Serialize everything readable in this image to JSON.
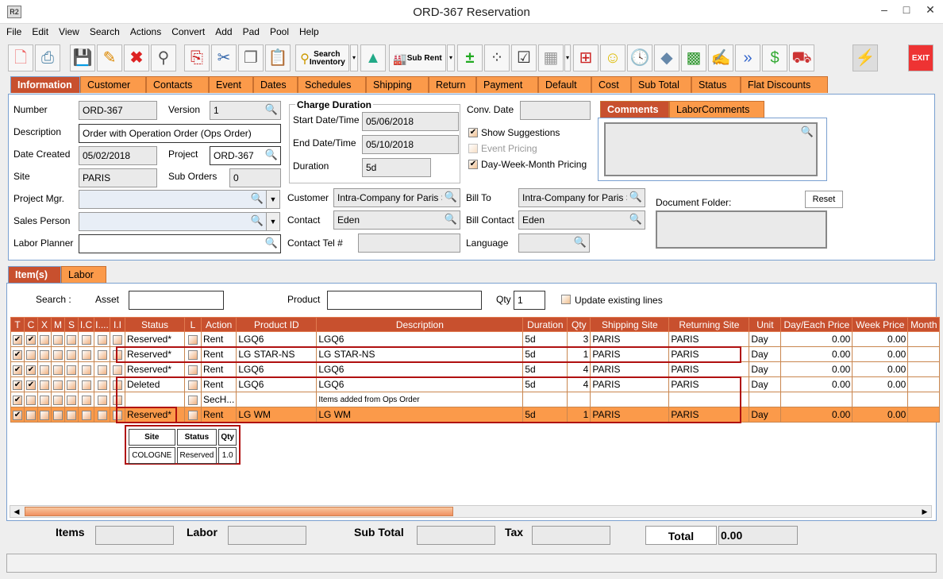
{
  "window": {
    "title": "ORD-367 Reservation",
    "app_icon": "R2",
    "minimize": "–",
    "maximize": "□",
    "close": "✕"
  },
  "menu": [
    "File",
    "Edit",
    "View",
    "Search",
    "Actions",
    "Convert",
    "Add",
    "Pad",
    "Pool",
    "Help"
  ],
  "toolbar": {
    "search_inventory": "Search Inventory",
    "sub_rent": "Sub Rent",
    "exit": "EXIT"
  },
  "main_tabs": [
    "Information",
    "Customer",
    "Contacts",
    "Event",
    "Dates",
    "Schedules",
    "Shipping",
    "Return",
    "Payment",
    "Default",
    "Cost",
    "Sub Total",
    "Status",
    "Flat Discounts"
  ],
  "info": {
    "number_label": "Number",
    "number": "ORD-367",
    "version_label": "Version",
    "version": "1",
    "description_label": "Description",
    "description": "Order with Operation Order (Ops Order)",
    "date_created_label": "Date Created",
    "date_created": "05/02/2018",
    "project_label": "Project",
    "project": "ORD-367",
    "site_label": "Site",
    "site": "PARIS",
    "sub_orders_label": "Sub Orders",
    "sub_orders": "0",
    "project_mgr_label": "Project Mgr.",
    "sales_person_label": "Sales Person",
    "labor_planner_label": "Labor Planner",
    "charge_duration_title": "Charge Duration",
    "start_label": "Start Date/Time",
    "start": "05/06/2018",
    "end_label": "End Date/Time",
    "end": "05/10/2018",
    "duration_label": "Duration",
    "duration": "5d",
    "conv_date_label": "Conv. Date",
    "show_suggestions": "Show Suggestions",
    "event_pricing": "Event Pricing",
    "dwm_pricing": "Day-Week-Month Pricing",
    "customer_label": "Customer",
    "customer": "Intra-Company for Paris Site",
    "contact_label": "Contact",
    "contact": "Eden",
    "contact_tel_label": "Contact Tel #",
    "bill_to_label": "Bill To",
    "bill_to": "Intra-Company for Paris Site",
    "bill_contact_label": "Bill Contact",
    "bill_contact": "Eden",
    "language_label": "Language",
    "comments_tab": "Comments",
    "labor_comments_tab": "LaborComments",
    "document_folder_label": "Document Folder:",
    "reset": "Reset"
  },
  "items_tabs": [
    "Item(s)",
    "Labor"
  ],
  "search": {
    "label": "Search :",
    "asset_label": "Asset",
    "product_label": "Product",
    "qty_label": "Qty",
    "qty": "1",
    "update_existing": "Update existing lines"
  },
  "columns": [
    "T",
    "C",
    "X",
    "M",
    "S",
    "I.C",
    "I....",
    "I.I",
    "Status",
    "L",
    "Action",
    "Product ID",
    "Description",
    "Duration",
    "Qty",
    "Shipping Site",
    "Returning Site",
    "Unit",
    "Day/Each Price",
    "Week Price",
    "Month"
  ],
  "rows": [
    {
      "t": true,
      "c": true,
      "status": "Reserved*",
      "action": "Rent",
      "product": "LGQ6",
      "desc": "LGQ6",
      "duration": "5d",
      "qty": "3",
      "ship": "PARIS",
      "ret": "PARIS",
      "unit": "Day",
      "day": "0.00",
      "week": "0.00"
    },
    {
      "t": true,
      "c": false,
      "status": "Reserved*",
      "action": "Rent",
      "product": "LG STAR-NS",
      "desc": "LG STAR-NS",
      "duration": "5d",
      "qty": "1",
      "ship": "PARIS",
      "ret": "PARIS",
      "unit": "Day",
      "day": "0.00",
      "week": "0.00"
    },
    {
      "t": true,
      "c": true,
      "status": "Reserved*",
      "action": "Rent",
      "product": "LGQ6",
      "desc": "LGQ6",
      "duration": "5d",
      "qty": "4",
      "ship": "PARIS",
      "ret": "PARIS",
      "unit": "Day",
      "day": "0.00",
      "week": "0.00"
    },
    {
      "t": true,
      "c": true,
      "status": "Deleted",
      "action": "Rent",
      "product": "LGQ6",
      "desc": "LGQ6",
      "duration": "5d",
      "qty": "4",
      "ship": "PARIS",
      "ret": "PARIS",
      "unit": "Day",
      "day": "0.00",
      "week": "0.00"
    },
    {
      "t": true,
      "c": false,
      "status": "",
      "action": "SecH...",
      "product": "",
      "desc": "Items added from Ops Order",
      "duration": "",
      "qty": "",
      "ship": "",
      "ret": "",
      "unit": "",
      "day": "",
      "week": "",
      "small": true
    },
    {
      "t": true,
      "c": false,
      "status": "Reserved*",
      "action": "Rent",
      "product": "LG WM",
      "desc": "LG WM",
      "duration": "5d",
      "qty": "1",
      "ship": "PARIS",
      "ret": "PARIS",
      "unit": "Day",
      "day": "0.00",
      "week": "0.00",
      "selected": true
    }
  ],
  "popup": {
    "headers": [
      "Site",
      "Status",
      "Qty"
    ],
    "values": [
      "COLOGNE",
      "Reserved",
      "1.0"
    ]
  },
  "totals": {
    "items_label": "Items",
    "labor_label": "Labor",
    "sub_total_label": "Sub Total",
    "tax_label": "Tax",
    "total_label": "Total",
    "total": "0.00"
  },
  "colors": {
    "accent": "#c8502e",
    "tab": "#fb9a4a",
    "highlight": "#b01010"
  }
}
